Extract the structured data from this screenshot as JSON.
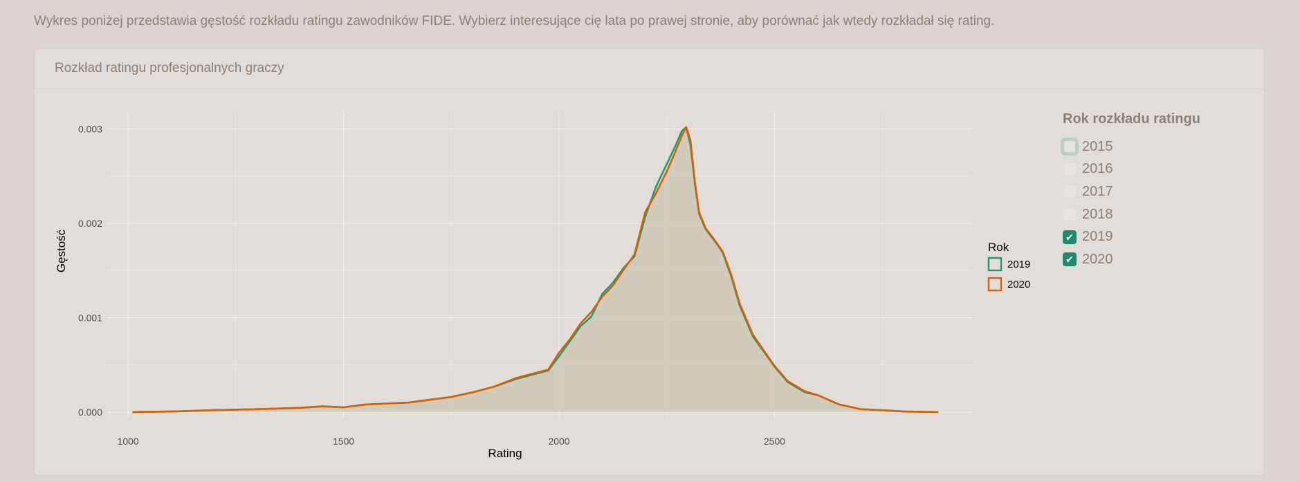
{
  "intro_text": "Wykres poniżej przedstawia gęstość rozkładu ratingu zawodników FIDE. Wybierz interesujące cię lata po prawej stronie, aby porównać jak wtedy rozkładał się rating.",
  "card": {
    "title": "Rozkład ratingu profesjonalnych graczy"
  },
  "year_selector": {
    "title": "Rok rozkładu ratingu",
    "options": [
      {
        "label": "2015",
        "checked": false,
        "focused": true
      },
      {
        "label": "2016",
        "checked": false,
        "focused": false
      },
      {
        "label": "2017",
        "checked": false,
        "focused": false
      },
      {
        "label": "2018",
        "checked": false,
        "focused": false
      },
      {
        "label": "2019",
        "checked": true,
        "focused": false
      },
      {
        "label": "2020",
        "checked": true,
        "focused": false
      }
    ],
    "check_glyph": "✔"
  },
  "chart_data": {
    "type": "area",
    "title": "",
    "xlabel": "Rating",
    "ylabel": "Gęstość",
    "xlim": [
      950,
      2960
    ],
    "ylim": [
      -6e-05,
      0.00318
    ],
    "x_ticks": [
      1000,
      1500,
      2000,
      2500
    ],
    "x_tick_labels": [
      "1000",
      "1500",
      "2000",
      "2500"
    ],
    "y_ticks": [
      0,
      0.001,
      0.002,
      0.003
    ],
    "y_tick_labels": [
      "0.000",
      "0.001",
      "0.002",
      "0.003"
    ],
    "grid": true,
    "legend": {
      "title": "Rok",
      "position": "right"
    },
    "fill_color": "#cdc6b3",
    "series": [
      {
        "name": "2019",
        "color": "#1b9e77",
        "x": [
          1010,
          1100,
          1200,
          1300,
          1400,
          1450,
          1500,
          1550,
          1600,
          1650,
          1700,
          1750,
          1800,
          1850,
          1900,
          1950,
          1975,
          2000,
          2025,
          2050,
          2075,
          2100,
          2125,
          2150,
          2175,
          2200,
          2225,
          2250,
          2270,
          2285,
          2295,
          2305,
          2315,
          2325,
          2340,
          2360,
          2380,
          2400,
          2420,
          2450,
          2480,
          2500,
          2530,
          2570,
          2600,
          2650,
          2700,
          2750,
          2800,
          2880
        ],
        "values": [
          0,
          5e-06,
          2e-05,
          3e-05,
          4.5e-05,
          6e-05,
          5e-05,
          8e-05,
          9e-05,
          0.0001,
          0.00013,
          0.00016,
          0.00021,
          0.00027,
          0.00035,
          0.00041,
          0.00044,
          0.00059,
          0.00075,
          0.00091,
          0.00101,
          0.00125,
          0.00137,
          0.00153,
          0.00165,
          0.00207,
          0.00239,
          0.00263,
          0.00282,
          0.00298,
          0.00302,
          0.00283,
          0.00243,
          0.0021,
          0.00194,
          0.00182,
          0.00169,
          0.00143,
          0.00112,
          0.0008,
          0.00061,
          0.00048,
          0.00032,
          0.00021,
          0.00018,
          8e-05,
          3e-05,
          2e-05,
          5e-06,
          0
        ]
      },
      {
        "name": "2020",
        "color": "#d95f02",
        "x": [
          1010,
          1100,
          1200,
          1300,
          1400,
          1450,
          1500,
          1550,
          1600,
          1650,
          1700,
          1750,
          1800,
          1850,
          1900,
          1950,
          1975,
          2000,
          2025,
          2050,
          2075,
          2100,
          2125,
          2150,
          2175,
          2200,
          2225,
          2250,
          2270,
          2285,
          2295,
          2305,
          2315,
          2325,
          2340,
          2360,
          2380,
          2400,
          2420,
          2450,
          2480,
          2500,
          2530,
          2570,
          2600,
          2650,
          2700,
          2750,
          2800,
          2880
        ],
        "values": [
          0,
          5e-06,
          2e-05,
          3e-05,
          4.5e-05,
          6e-05,
          5e-05,
          8e-05,
          9e-05,
          0.0001,
          0.00013,
          0.00016,
          0.00021,
          0.00027,
          0.00036,
          0.00042,
          0.00045,
          0.00063,
          0.00077,
          0.00094,
          0.00106,
          0.00122,
          0.00134,
          0.00151,
          0.00167,
          0.00212,
          0.00232,
          0.00255,
          0.00276,
          0.00293,
          0.00302,
          0.00288,
          0.00245,
          0.00212,
          0.00195,
          0.00183,
          0.0017,
          0.00145,
          0.00114,
          0.00082,
          0.00062,
          0.00049,
          0.00033,
          0.00022,
          0.00018,
          8e-05,
          3e-05,
          2e-05,
          5e-06,
          0
        ]
      }
    ]
  }
}
